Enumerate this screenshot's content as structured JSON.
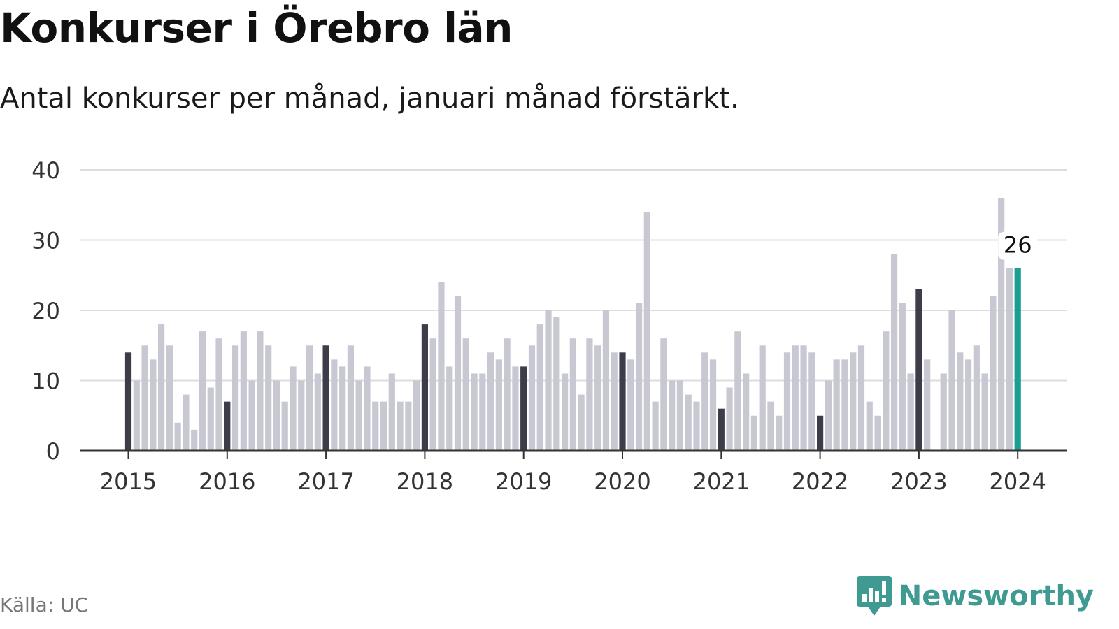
{
  "title": "Konkurser i Örebro län",
  "subtitle": "Antal konkurser per månad, januari månad förstärkt.",
  "source": "Källa: UC",
  "brand": "Newsworthy",
  "colors": {
    "january": "#3d3d4a",
    "other": "#c8c8d2",
    "latest": "#1a9e94",
    "grid": "#dddddd",
    "axis": "#333333",
    "brand": "#3f9a92"
  },
  "chart_data": {
    "type": "bar",
    "title": "Konkurser i Örebro län",
    "subtitle": "Antal konkurser per månad, januari månad förstärkt.",
    "x_start": "2015-01",
    "x_end": "2024-01",
    "x_ticks": [
      "2015",
      "2016",
      "2017",
      "2018",
      "2019",
      "2020",
      "2021",
      "2022",
      "2023",
      "2024"
    ],
    "y_ticks": [
      0,
      10,
      20,
      30,
      40
    ],
    "ylim": [
      0,
      40
    ],
    "grid": true,
    "highlight": "january",
    "annotation": {
      "x": "2024-01",
      "text": "26"
    },
    "values": [
      14,
      10,
      15,
      13,
      18,
      15,
      4,
      8,
      3,
      17,
      9,
      16,
      7,
      15,
      17,
      10,
      17,
      15,
      10,
      7,
      12,
      10,
      15,
      11,
      15,
      13,
      12,
      15,
      10,
      12,
      7,
      7,
      11,
      7,
      7,
      10,
      18,
      16,
      24,
      12,
      22,
      16,
      11,
      11,
      14,
      13,
      16,
      12,
      12,
      15,
      18,
      20,
      19,
      11,
      16,
      8,
      16,
      15,
      20,
      14,
      14,
      13,
      21,
      34,
      7,
      16,
      10,
      10,
      8,
      7,
      14,
      13,
      6,
      9,
      17,
      11,
      5,
      15,
      7,
      5,
      14,
      15,
      15,
      14,
      5,
      10,
      13,
      13,
      14,
      15,
      7,
      5,
      17,
      28,
      21,
      11,
      23,
      13,
      0,
      11,
      20,
      14,
      13,
      15,
      11,
      22,
      36,
      26,
      26
    ]
  }
}
